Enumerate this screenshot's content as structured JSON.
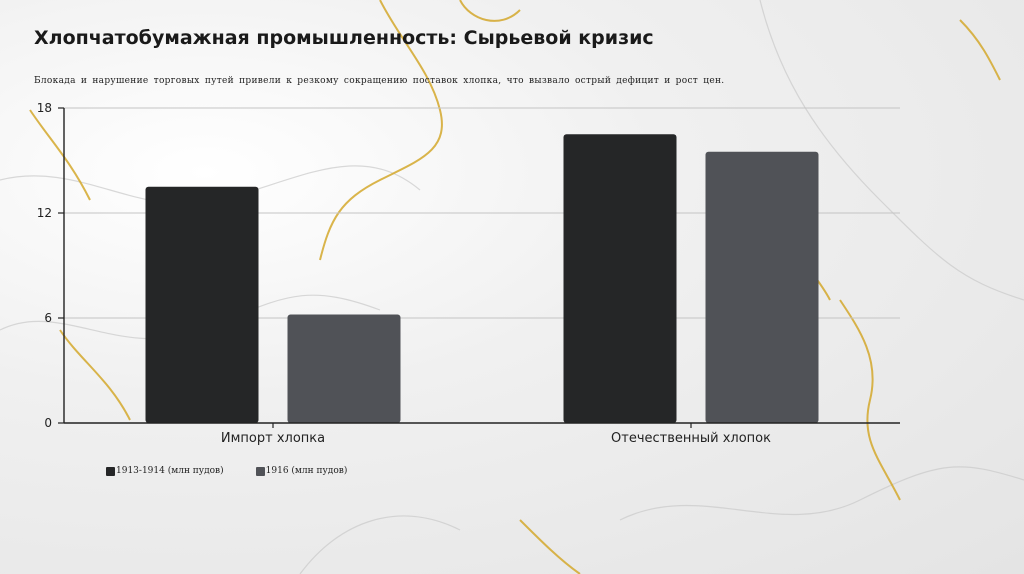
{
  "slide": {
    "title": "Хлопчатобумажная промышленность: Сырьевой кризис",
    "subtitle": "Блокада и нарушение торговых путей привели к резкому сокращению поставок хлопка, что вызвало острый дефицит и рост цен."
  },
  "colors": {
    "series_1": "#252627",
    "series_2": "#505257",
    "gold": "#d4a82c"
  },
  "chart_data": {
    "type": "bar",
    "categories": [
      "Импорт хлопка",
      "Отечественный хлопок"
    ],
    "series": [
      {
        "name": "1913-1914 (млн пудов)",
        "values": [
          13.5,
          16.5
        ]
      },
      {
        "name": "1916 (млн пудов)",
        "values": [
          6.2,
          15.5
        ]
      }
    ],
    "ylim": [
      0,
      18
    ],
    "yticks": [
      0,
      6,
      12,
      18
    ],
    "grid": true,
    "legend_position": "bottom-left"
  }
}
